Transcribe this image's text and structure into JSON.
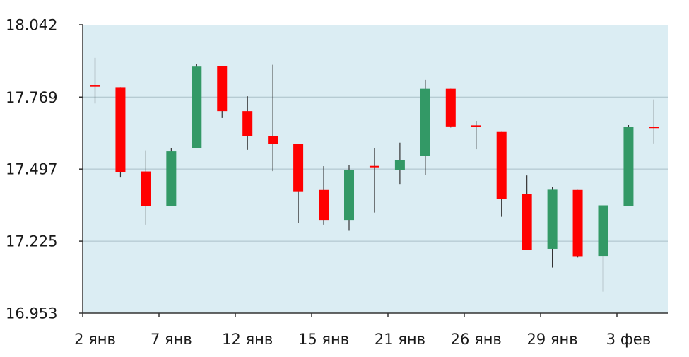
{
  "chart_data": {
    "type": "candlestick",
    "title": "",
    "xlabel": "",
    "ylabel": "",
    "ylim": [
      16.953,
      18.042
    ],
    "yticks": [
      "18.042",
      "17.769",
      "17.497",
      "17.225",
      "16.953"
    ],
    "xticks": [
      {
        "label": "2 янв",
        "index": 0
      },
      {
        "label": "7 янв",
        "index": 3
      },
      {
        "label": "12 янв",
        "index": 6
      },
      {
        "label": "15 янв",
        "index": 9
      },
      {
        "label": "21 янв",
        "index": 12
      },
      {
        "label": "26 янв",
        "index": 15
      },
      {
        "label": "29 янв",
        "index": 18
      },
      {
        "label": "3 фев",
        "index": 21
      }
    ],
    "grid": true,
    "colors": {
      "up": "#339966",
      "down": "#ff0000",
      "plot_bg": "#dbedf3",
      "grid": "#a9c0c8",
      "wick": "#333333"
    },
    "candles": [
      {
        "open": 17.815,
        "close": 17.808,
        "high": 17.917,
        "low": 17.745
      },
      {
        "open": 17.806,
        "close": 17.486,
        "high": 17.806,
        "low": 17.465
      },
      {
        "open": 17.488,
        "close": 17.358,
        "high": 17.568,
        "low": 17.287
      },
      {
        "open": 17.357,
        "close": 17.564,
        "high": 17.576,
        "low": 17.357
      },
      {
        "open": 17.576,
        "close": 17.884,
        "high": 17.893,
        "low": 17.576
      },
      {
        "open": 17.886,
        "close": 17.716,
        "high": 17.886,
        "low": 17.69
      },
      {
        "open": 17.716,
        "close": 17.621,
        "high": 17.772,
        "low": 17.57
      },
      {
        "open": 17.621,
        "close": 17.591,
        "high": 17.891,
        "low": 17.489
      },
      {
        "open": 17.593,
        "close": 17.413,
        "high": 17.593,
        "low": 17.292
      },
      {
        "open": 17.418,
        "close": 17.305,
        "high": 17.508,
        "low": 17.287
      },
      {
        "open": 17.305,
        "close": 17.494,
        "high": 17.513,
        "low": 17.264
      },
      {
        "open": 17.509,
        "close": 17.508,
        "high": 17.575,
        "low": 17.333
      },
      {
        "open": 17.494,
        "close": 17.532,
        "high": 17.597,
        "low": 17.441
      },
      {
        "open": 17.547,
        "close": 17.8,
        "high": 17.834,
        "low": 17.475
      },
      {
        "open": 17.8,
        "close": 17.658,
        "high": 17.8,
        "low": 17.654
      },
      {
        "open": 17.662,
        "close": 17.66,
        "high": 17.679,
        "low": 17.572
      },
      {
        "open": 17.637,
        "close": 17.385,
        "high": 17.637,
        "low": 17.317
      },
      {
        "open": 17.402,
        "close": 17.193,
        "high": 17.473,
        "low": 17.193
      },
      {
        "open": 17.196,
        "close": 17.419,
        "high": 17.43,
        "low": 17.125
      },
      {
        "open": 17.418,
        "close": 17.168,
        "high": 17.418,
        "low": 17.163
      },
      {
        "open": 17.169,
        "close": 17.36,
        "high": 17.36,
        "low": 17.034
      },
      {
        "open": 17.357,
        "close": 17.655,
        "high": 17.663,
        "low": 17.357
      },
      {
        "open": 17.657,
        "close": 17.652,
        "high": 17.76,
        "low": 17.594
      }
    ]
  }
}
